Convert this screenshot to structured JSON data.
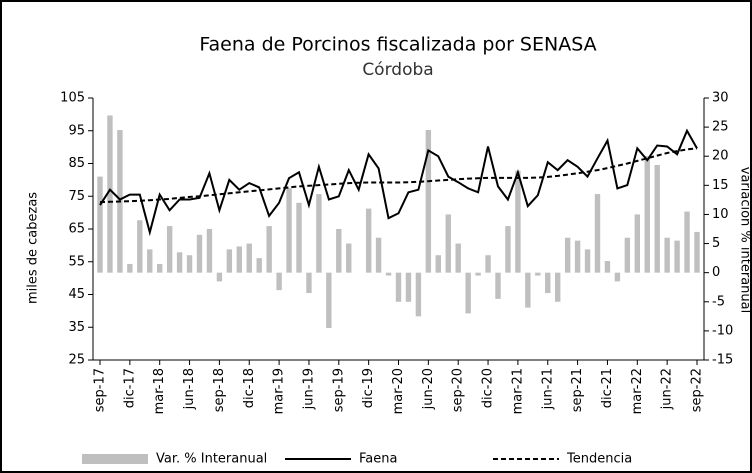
{
  "chart_data": {
    "type": "combo",
    "title": "Faena de Porcinos fiscalizada por SENASA",
    "subtitle": "Córdoba",
    "ylabel": "miles de cabezas",
    "y2label": "variación % interanual",
    "categories": [
      "sep-17",
      null,
      null,
      "dic-17",
      null,
      null,
      "mar-18",
      null,
      null,
      "jun-18",
      null,
      null,
      "sep-18",
      null,
      null,
      "dic-18",
      null,
      null,
      "mar-19",
      null,
      null,
      "jun-19",
      null,
      null,
      "sep-19",
      null,
      null,
      "dic-19",
      null,
      null,
      "mar-20",
      null,
      null,
      "jun-20",
      null,
      null,
      "sep-20",
      null,
      null,
      "dic-20",
      null,
      null,
      "mar-21",
      null,
      null,
      "jun-21",
      null,
      null,
      "sep-21",
      null,
      null,
      "dic-21",
      null,
      null,
      "mar-22",
      null,
      null,
      "jun-22",
      null,
      null,
      "sep-22"
    ],
    "ylim": [
      25,
      105
    ],
    "yticks": [
      25,
      35,
      45,
      55,
      65,
      75,
      85,
      95,
      105
    ],
    "y2lim": [
      -15,
      30
    ],
    "y2ticks": [
      -15,
      -10,
      -5,
      0,
      5,
      10,
      15,
      20,
      25,
      30
    ],
    "series": [
      {
        "name": "Var. % Interanual",
        "kind": "bar",
        "axis": "y2",
        "color": "#bfbfbf",
        "values": [
          16.5,
          27,
          24.5,
          1.5,
          9,
          4,
          1.5,
          8,
          3.5,
          3,
          6.5,
          7.5,
          -1.5,
          4,
          4.5,
          5,
          2.5,
          8,
          -3,
          14.5,
          12,
          -3.5,
          13.5,
          -9.5,
          7.5,
          5,
          0,
          11,
          6,
          -0.5,
          -5,
          -5,
          -7.5,
          24.5,
          3,
          10,
          5,
          -7,
          -0.5,
          3,
          -4.5,
          8,
          17.5,
          -6,
          -0.5,
          -3.5,
          -5,
          6,
          5.5,
          4,
          13.5,
          2,
          -1.5,
          6,
          10,
          20,
          18.5,
          6,
          5.5,
          10.5,
          7
        ]
      },
      {
        "name": "Faena",
        "kind": "line",
        "color": "#000000",
        "values": [
          72.3,
          77,
          74,
          75.5,
          75.5,
          64,
          75.5,
          70.7,
          74,
          74,
          74.5,
          82,
          70.7,
          80,
          77,
          79,
          77.7,
          69,
          73,
          80.5,
          82.3,
          72.3,
          84,
          74,
          75,
          83,
          77,
          87.8,
          83.5,
          68.3,
          69.8,
          76.2,
          77,
          89,
          87.2,
          81,
          79.3,
          77.4,
          76.2,
          90.2,
          78,
          74,
          82.3,
          72,
          75.3,
          85.4,
          83,
          86,
          84,
          81,
          86.6,
          92,
          77.4,
          78.4,
          89.6,
          86,
          90.5,
          90.2,
          87.8,
          95,
          89.6
        ]
      },
      {
        "name": "Tendencia",
        "kind": "dashed",
        "color": "#000000",
        "values": [
          73.2,
          73.3,
          73.4,
          73.5,
          73.6,
          73.8,
          74,
          74.2,
          74.5,
          74.8,
          75,
          75.3,
          75.6,
          75.9,
          76.2,
          76.5,
          76.8,
          77.1,
          77.4,
          77.7,
          78,
          78.2,
          78.4,
          78.6,
          78.8,
          79,
          79.1,
          79.2,
          79.2,
          79.2,
          79.2,
          79.3,
          79.4,
          79.6,
          79.8,
          80,
          80.2,
          80.4,
          80.5,
          80.6,
          80.6,
          80.6,
          80.6,
          80.6,
          80.7,
          80.9,
          81.2,
          81.6,
          82,
          82.5,
          83,
          83.6,
          84.3,
          85,
          85.8,
          86.6,
          87.4,
          88.2,
          88.8,
          89.3,
          89.6
        ]
      }
    ]
  }
}
